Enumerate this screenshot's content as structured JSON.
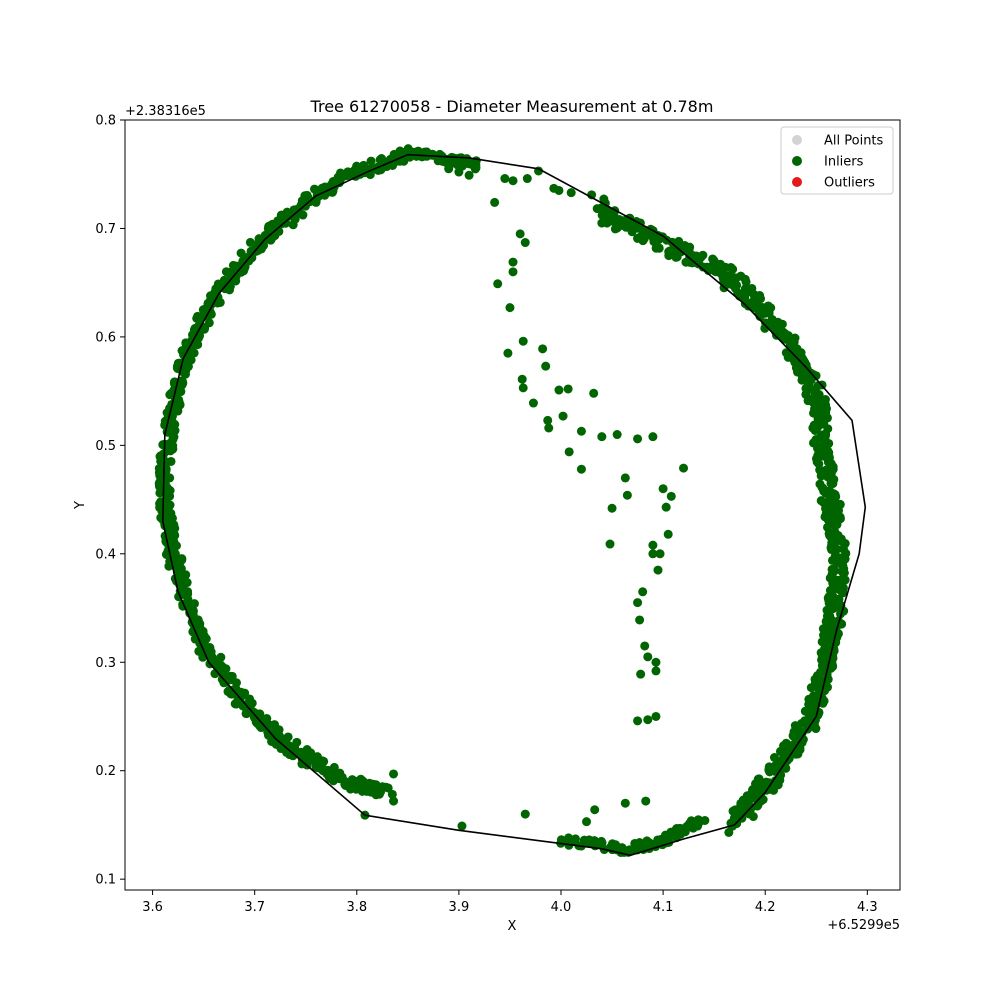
{
  "chart_data": {
    "type": "scatter",
    "title": "Tree 61270058 - Diameter Measurement at 0.78m",
    "xlabel": "X",
    "ylabel": "Y",
    "x_offset_label": "+6.5299e5",
    "y_offset_label": "+2.38316e5",
    "xlim": [
      3.573,
      4.332
    ],
    "ylim": [
      0.09,
      0.8
    ],
    "xticks": [
      3.6,
      3.7,
      3.8,
      3.9,
      4.0,
      4.1,
      4.2,
      4.3
    ],
    "xtick_labels": [
      "3.6",
      "3.7",
      "3.8",
      "3.9",
      "4.0",
      "4.1",
      "4.2",
      "4.3"
    ],
    "yticks": [
      0.1,
      0.2,
      0.3,
      0.4,
      0.5,
      0.6,
      0.7,
      0.8
    ],
    "ytick_labels": [
      "0.1",
      "0.2",
      "0.3",
      "0.4",
      "0.5",
      "0.6",
      "0.7",
      "0.8"
    ],
    "legend_position": "top-right",
    "legend": [
      {
        "label": "All Points",
        "color": "#d3d3d3"
      },
      {
        "label": "Inliers",
        "color": "#006400"
      },
      {
        "label": "Outliers",
        "color": "#e31a1c"
      }
    ],
    "colors": {
      "inliers": "#006400",
      "hull": "#000000"
    },
    "ring_points": [
      [
        3.85,
        0.768
      ],
      [
        3.8,
        0.752
      ],
      [
        3.76,
        0.73
      ],
      [
        3.72,
        0.7
      ],
      [
        3.69,
        0.67
      ],
      [
        3.66,
        0.635
      ],
      [
        3.64,
        0.6
      ],
      [
        3.625,
        0.56
      ],
      [
        3.617,
        0.52
      ],
      [
        3.612,
        0.48
      ],
      [
        3.613,
        0.44
      ],
      [
        3.62,
        0.4
      ],
      [
        3.632,
        0.36
      ],
      [
        3.65,
        0.315
      ],
      [
        3.675,
        0.28
      ],
      [
        3.705,
        0.245
      ],
      [
        3.745,
        0.215
      ],
      [
        3.79,
        0.19
      ],
      [
        3.83,
        0.18
      ]
    ],
    "ring_right_points": [
      [
        4.165,
        0.15
      ],
      [
        4.19,
        0.175
      ],
      [
        4.215,
        0.205
      ],
      [
        4.24,
        0.24
      ],
      [
        4.255,
        0.275
      ],
      [
        4.262,
        0.31
      ],
      [
        4.268,
        0.345
      ],
      [
        4.272,
        0.38
      ],
      [
        4.27,
        0.42
      ],
      [
        4.262,
        0.46
      ],
      [
        4.255,
        0.5
      ],
      [
        4.252,
        0.54
      ],
      [
        4.235,
        0.575
      ],
      [
        4.21,
        0.61
      ],
      [
        4.18,
        0.64
      ],
      [
        4.15,
        0.665
      ],
      [
        4.11,
        0.68
      ],
      [
        4.07,
        0.7
      ],
      [
        4.04,
        0.72
      ]
    ],
    "ring_top_points": [
      [
        3.85,
        0.768
      ],
      [
        3.88,
        0.766
      ],
      [
        3.9,
        0.762
      ],
      [
        3.92,
        0.758
      ]
    ],
    "ring_bottom_points": [
      [
        4.0,
        0.135
      ],
      [
        4.03,
        0.133
      ],
      [
        4.06,
        0.128
      ],
      [
        4.08,
        0.13
      ],
      [
        4.1,
        0.135
      ],
      [
        4.12,
        0.145
      ],
      [
        4.14,
        0.155
      ]
    ],
    "inner_points": [
      [
        3.935,
        0.724
      ],
      [
        3.945,
        0.746
      ],
      [
        3.953,
        0.744
      ],
      [
        3.967,
        0.746
      ],
      [
        3.978,
        0.753
      ],
      [
        3.993,
        0.737
      ],
      [
        3.998,
        0.735
      ],
      [
        4.01,
        0.733
      ],
      [
        4.03,
        0.731
      ],
      [
        4.04,
        0.705
      ],
      [
        4.05,
        0.713
      ],
      [
        3.96,
        0.695
      ],
      [
        3.965,
        0.687
      ],
      [
        3.953,
        0.669
      ],
      [
        3.953,
        0.66
      ],
      [
        3.938,
        0.649
      ],
      [
        3.95,
        0.627
      ],
      [
        3.963,
        0.596
      ],
      [
        3.948,
        0.585
      ],
      [
        3.982,
        0.589
      ],
      [
        3.985,
        0.573
      ],
      [
        3.962,
        0.561
      ],
      [
        3.963,
        0.553
      ],
      [
        3.973,
        0.539
      ],
      [
        3.987,
        0.523
      ],
      [
        3.988,
        0.516
      ],
      [
        3.998,
        0.551
      ],
      [
        4.007,
        0.552
      ],
      [
        4.002,
        0.527
      ],
      [
        4.008,
        0.494
      ],
      [
        4.02,
        0.513
      ],
      [
        4.02,
        0.478
      ],
      [
        4.032,
        0.548
      ],
      [
        4.04,
        0.508
      ],
      [
        4.055,
        0.51
      ],
      [
        4.075,
        0.506
      ],
      [
        4.09,
        0.508
      ],
      [
        4.12,
        0.479
      ],
      [
        4.063,
        0.47
      ],
      [
        4.065,
        0.454
      ],
      [
        4.05,
        0.442
      ],
      [
        4.048,
        0.409
      ],
      [
        4.1,
        0.46
      ],
      [
        4.108,
        0.453
      ],
      [
        4.103,
        0.443
      ],
      [
        4.105,
        0.418
      ],
      [
        4.09,
        0.408
      ],
      [
        4.09,
        0.4
      ],
      [
        4.097,
        0.4
      ],
      [
        4.095,
        0.385
      ],
      [
        4.08,
        0.365
      ],
      [
        4.075,
        0.355
      ],
      [
        4.077,
        0.339
      ],
      [
        4.082,
        0.315
      ],
      [
        4.085,
        0.305
      ],
      [
        4.093,
        0.3
      ],
      [
        4.093,
        0.292
      ],
      [
        4.078,
        0.289
      ],
      [
        4.075,
        0.246
      ],
      [
        4.085,
        0.247
      ],
      [
        4.093,
        0.25
      ],
      [
        3.903,
        0.149
      ],
      [
        3.965,
        0.16
      ],
      [
        4.025,
        0.153
      ],
      [
        4.033,
        0.164
      ],
      [
        4.063,
        0.17
      ],
      [
        4.083,
        0.172
      ],
      [
        3.808,
        0.159
      ],
      [
        3.836,
        0.197
      ],
      [
        3.836,
        0.172
      ],
      [
        3.82,
        0.18
      ],
      [
        3.78,
        0.195
      ],
      [
        3.9,
        0.752
      ],
      [
        3.89,
        0.755
      ],
      [
        3.91,
        0.749
      ]
    ],
    "hull_points": [
      [
        3.808,
        0.159
      ],
      [
        3.72,
        0.23
      ],
      [
        3.655,
        0.3
      ],
      [
        3.625,
        0.365
      ],
      [
        3.61,
        0.43
      ],
      [
        3.612,
        0.51
      ],
      [
        3.63,
        0.58
      ],
      [
        3.665,
        0.64
      ],
      [
        3.71,
        0.69
      ],
      [
        3.76,
        0.73
      ],
      [
        3.81,
        0.752
      ],
      [
        3.85,
        0.768
      ],
      [
        3.91,
        0.765
      ],
      [
        3.978,
        0.755
      ],
      [
        4.1,
        0.693
      ],
      [
        4.18,
        0.63
      ],
      [
        4.24,
        0.572
      ],
      [
        4.285,
        0.523
      ],
      [
        4.298,
        0.443
      ],
      [
        4.292,
        0.4
      ],
      [
        4.27,
        0.33
      ],
      [
        4.25,
        0.25
      ],
      [
        4.2,
        0.18
      ],
      [
        4.17,
        0.15
      ],
      [
        4.12,
        0.137
      ],
      [
        4.068,
        0.122
      ],
      [
        4.04,
        0.128
      ],
      [
        3.9,
        0.145
      ],
      [
        3.808,
        0.159
      ]
    ]
  }
}
